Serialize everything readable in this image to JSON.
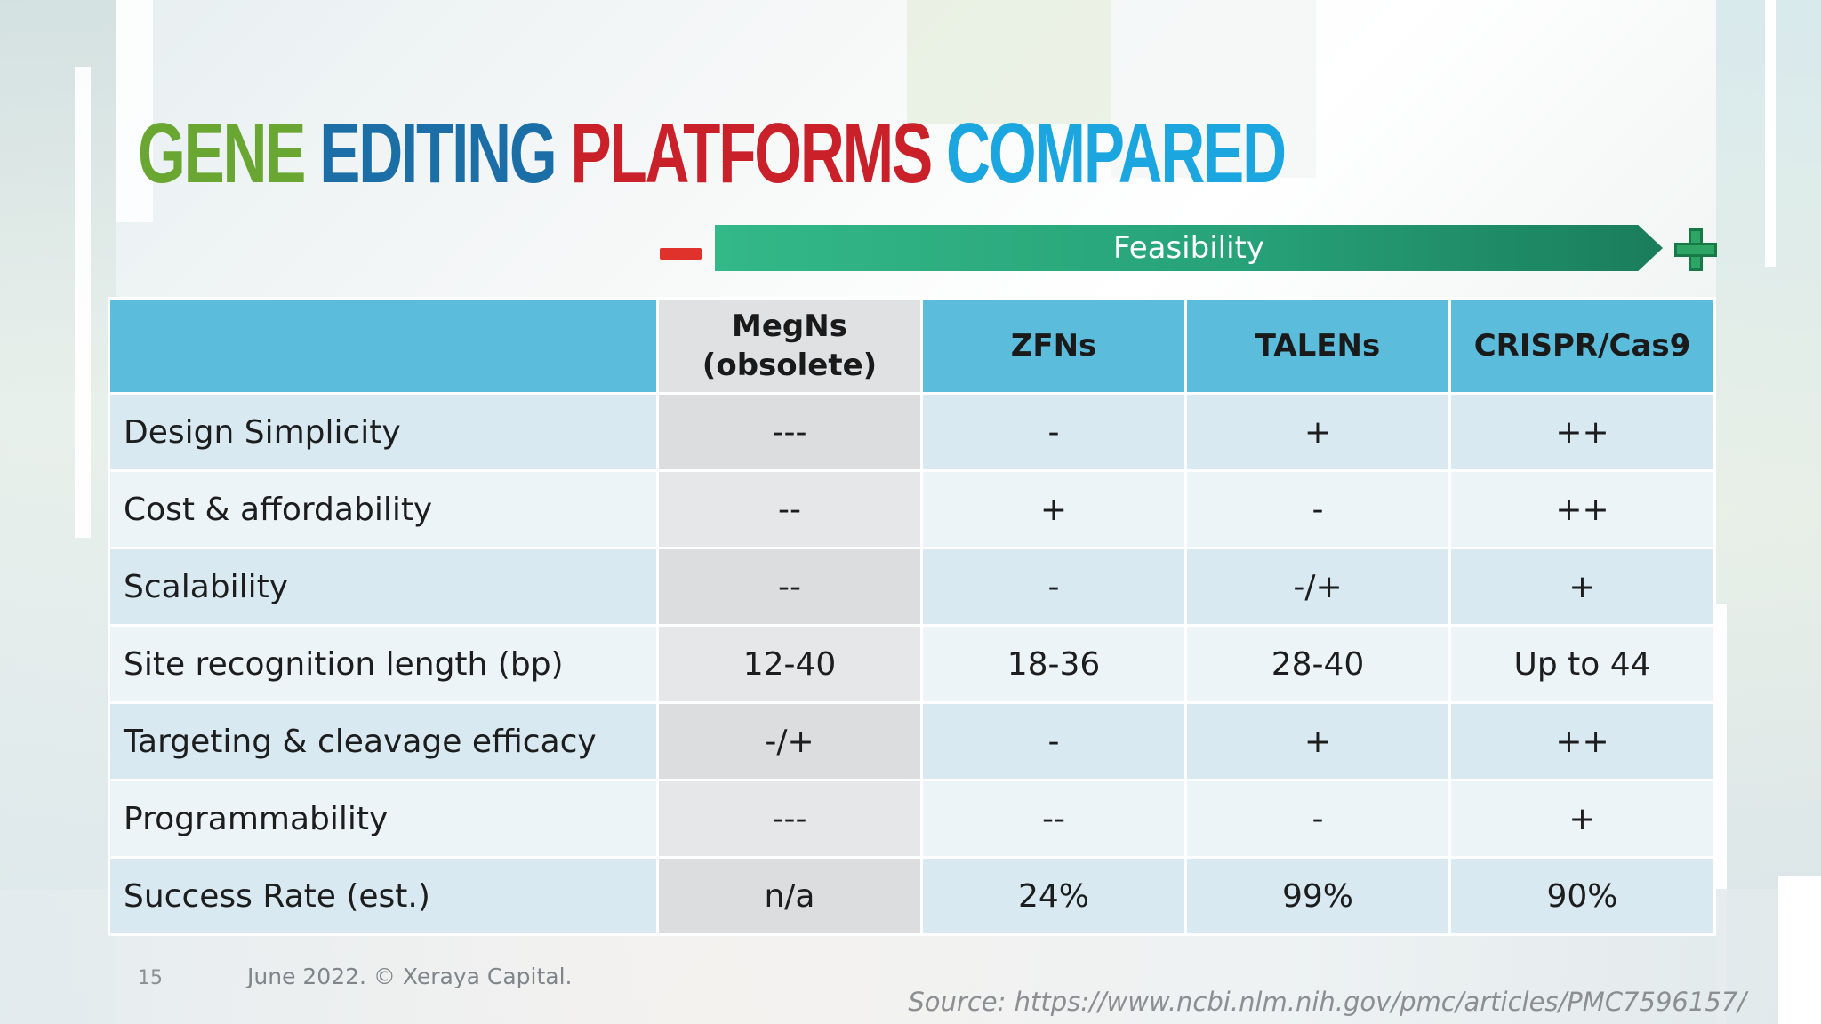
{
  "slide": {
    "title_words": [
      "GENE",
      "EDITING",
      "PLATFORMS",
      "COMPARED"
    ],
    "title_colors": [
      "#6aa632",
      "#1c6fa6",
      "#c9202a",
      "#1ba6e0"
    ],
    "feasibility_label": "Feasibility",
    "low_icon": "minus-icon",
    "high_icon": "plus-icon",
    "accent_colors": {
      "arrow": "#27a279",
      "minus": "#e0322b",
      "plus": "#2fa565",
      "header": "#5bbcdc"
    }
  },
  "table": {
    "headers": [
      "",
      "MegNs (obsolete)",
      "ZFNs",
      "TALENs",
      "CRISPR/Cas9"
    ],
    "header_megns_line1": "MegNs",
    "header_megns_line2": "(obsolete)",
    "rows": [
      {
        "label": "Design Simplicity",
        "cells": [
          "---",
          "-",
          "+",
          "++"
        ]
      },
      {
        "label": "Cost & affordability",
        "cells": [
          "--",
          "+",
          "-",
          "++"
        ]
      },
      {
        "label": "Scalability",
        "cells": [
          "--",
          "-",
          "-/+",
          "+"
        ]
      },
      {
        "label": "Site recognition length (bp)",
        "cells": [
          "12-40",
          "18-36",
          "28-40",
          "Up to 44"
        ]
      },
      {
        "label": "Targeting & cleavage efficacy",
        "cells": [
          "-/+",
          "-",
          "+",
          "++"
        ]
      },
      {
        "label": "Programmability",
        "cells": [
          "---",
          "--",
          "-",
          "+"
        ]
      },
      {
        "label": "Success Rate (est.)",
        "cells": [
          "n/a",
          "24%",
          "99%",
          "90%"
        ]
      }
    ]
  },
  "footer": {
    "page_number": "15",
    "note": "June 2022. © Xeraya Capital.",
    "source": "Source: https://www.ncbi.nlm.nih.gov/pmc/articles/PMC7596157/"
  }
}
